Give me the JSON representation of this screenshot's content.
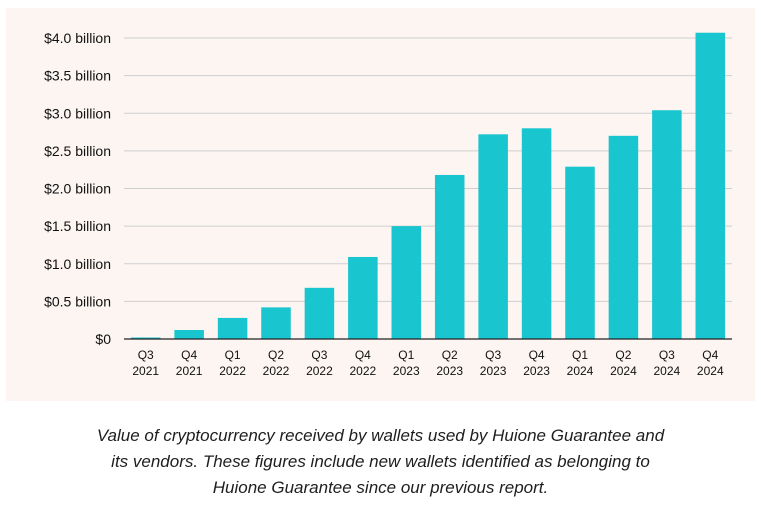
{
  "chart_data": {
    "type": "bar",
    "title": "",
    "xlabel": "",
    "ylabel": "",
    "categories": [
      [
        "Q3",
        "2021"
      ],
      [
        "Q4",
        "2021"
      ],
      [
        "Q1",
        "2022"
      ],
      [
        "Q2",
        "2022"
      ],
      [
        "Q3",
        "2022"
      ],
      [
        "Q4",
        "2022"
      ],
      [
        "Q1",
        "2023"
      ],
      [
        "Q2",
        "2023"
      ],
      [
        "Q3",
        "2023"
      ],
      [
        "Q4",
        "2023"
      ],
      [
        "Q1",
        "2024"
      ],
      [
        "Q2",
        "2024"
      ],
      [
        "Q3",
        "2024"
      ],
      [
        "Q4",
        "2024"
      ]
    ],
    "values": [
      0.02,
      0.12,
      0.28,
      0.42,
      0.68,
      1.09,
      1.5,
      2.18,
      2.72,
      2.8,
      2.29,
      2.7,
      3.04,
      4.07
    ],
    "value_unit": "billion USD",
    "ylim": [
      0,
      4.0
    ],
    "yticks": [
      0,
      0.5,
      1.0,
      1.5,
      2.0,
      2.5,
      3.0,
      3.5,
      4.0
    ],
    "ytick_labels": [
      "$0",
      "$0.5 billion",
      "$1.0 billion",
      "$1.5 billion",
      "$2.0 billion",
      "$2.5 billion",
      "$3.0 billion",
      "$3.5 billion",
      "$4.0 billion"
    ],
    "grid": true,
    "colors": {
      "bar": "#19c5cf",
      "grid": "#cfcfcf",
      "axis": "#222222",
      "panel": "#fcf5f2"
    }
  },
  "caption": {
    "lines": [
      "Value of cryptocurrency received by wallets used by Huione Guarantee and",
      "its vendors. These figures include new wallets identified as belonging to",
      "Huione Guarantee since our previous report."
    ]
  }
}
